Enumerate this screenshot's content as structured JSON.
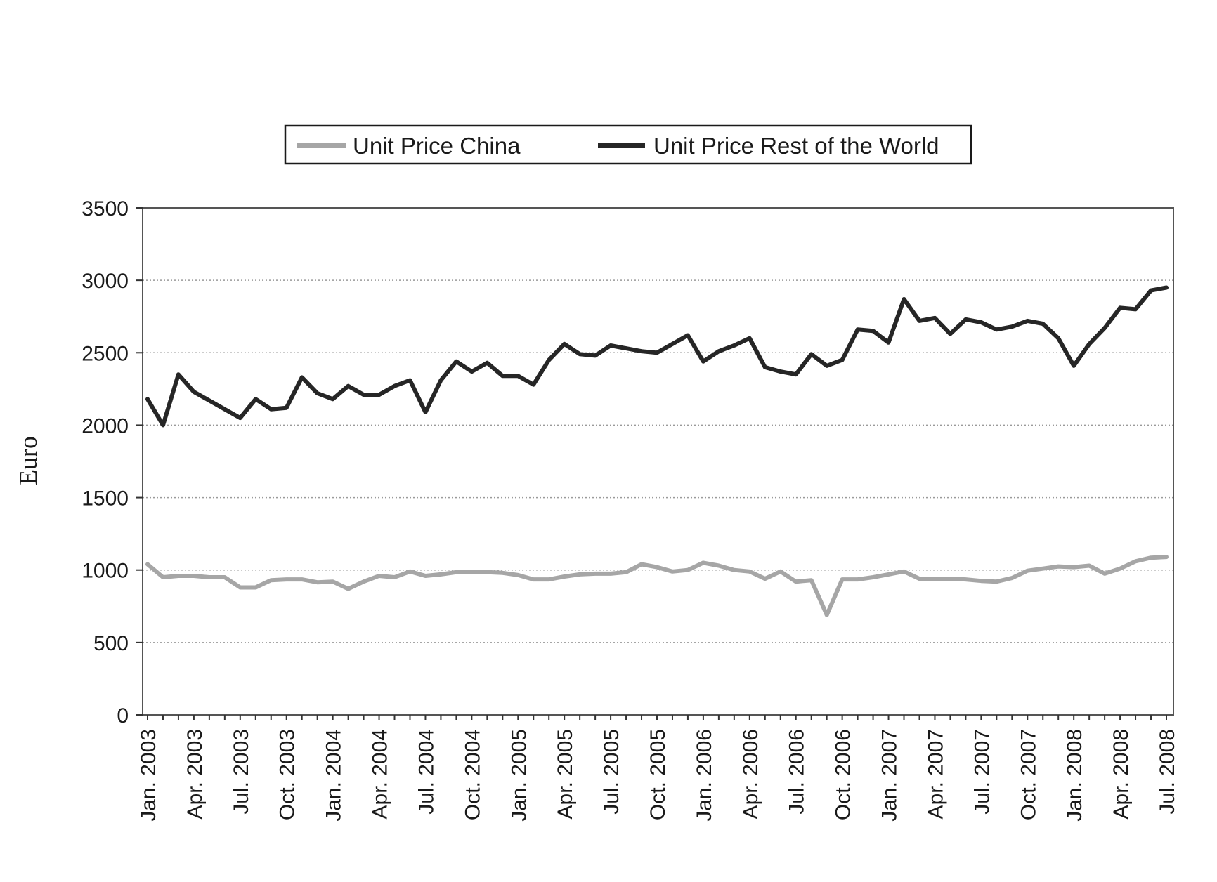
{
  "chart_data": {
    "type": "line",
    "title": "",
    "xlabel": "",
    "ylabel": "Euro",
    "ylim": [
      0,
      3500
    ],
    "yticks": [
      0,
      500,
      1000,
      1500,
      2000,
      2500,
      3000,
      3500
    ],
    "grid": "horizontal dotted",
    "legend": "top-center",
    "x": [
      "Jan. 2003",
      "Feb. 2003",
      "Mar. 2003",
      "Apr. 2003",
      "May 2003",
      "Jun. 2003",
      "Jul. 2003",
      "Aug. 2003",
      "Sep. 2003",
      "Oct. 2003",
      "Nov. 2003",
      "Dec. 2003",
      "Jan. 2004",
      "Feb. 2004",
      "Mar. 2004",
      "Apr. 2004",
      "May 2004",
      "Jun. 2004",
      "Jul. 2004",
      "Aug. 2004",
      "Sep. 2004",
      "Oct. 2004",
      "Nov. 2004",
      "Dec. 2004",
      "Jan. 2005",
      "Feb. 2005",
      "Mar. 2005",
      "Apr. 2005",
      "May 2005",
      "Jun. 2005",
      "Jul. 2005",
      "Aug. 2005",
      "Sep. 2005",
      "Oct. 2005",
      "Nov. 2005",
      "Dec. 2005",
      "Jan. 2006",
      "Feb. 2006",
      "Mar. 2006",
      "Apr. 2006",
      "May 2006",
      "Jun. 2006",
      "Jul. 2006",
      "Aug. 2006",
      "Sep. 2006",
      "Oct. 2006",
      "Nov. 2006",
      "Dec. 2006",
      "Jan. 2007",
      "Feb. 2007",
      "Mar. 2007",
      "Apr. 2007",
      "May 2007",
      "Jun. 2007",
      "Jul. 2007",
      "Aug. 2007",
      "Sep. 2007",
      "Oct. 2007",
      "Nov. 2007",
      "Dec. 2007",
      "Jan. 2008",
      "Feb. 2008",
      "Mar. 2008",
      "Apr. 2008",
      "May 2008",
      "Jun. 2008",
      "Jul. 2008"
    ],
    "xticks": [
      "Jan. 2003",
      "Apr. 2003",
      "Jul. 2003",
      "Oct. 2003",
      "Jan. 2004",
      "Apr. 2004",
      "Jul. 2004",
      "Oct. 2004",
      "Jan. 2005",
      "Apr. 2005",
      "Jul. 2005",
      "Oct. 2005",
      "Jan. 2006",
      "Apr. 2006",
      "Jul. 2006",
      "Oct. 2006",
      "Jan. 2007",
      "Apr. 2007",
      "Jul. 2007",
      "Oct. 2007",
      "Jan. 2008",
      "Apr. 2008",
      "Jul. 2008"
    ],
    "series": [
      {
        "name": "Unit Price China",
        "color": "#a6a6a6",
        "values": [
          1040,
          950,
          960,
          960,
          950,
          950,
          880,
          880,
          930,
          935,
          935,
          915,
          920,
          870,
          920,
          960,
          950,
          990,
          960,
          970,
          985,
          985,
          985,
          980,
          965,
          935,
          935,
          955,
          970,
          975,
          975,
          985,
          1040,
          1020,
          990,
          1000,
          1050,
          1030,
          1000,
          990,
          940,
          990,
          920,
          930,
          690,
          935,
          935,
          950,
          970,
          990,
          940,
          940,
          940,
          935,
          925,
          920,
          945,
          995,
          1010,
          1025,
          1020,
          1030,
          975,
          1010,
          1060,
          1085,
          1090
        ]
      },
      {
        "name": "Unit Price Rest of the World",
        "color": "#262626",
        "values": [
          2180,
          2000,
          2350,
          2230,
          2170,
          2110,
          2050,
          2180,
          2110,
          2120,
          2330,
          2220,
          2180,
          2270,
          2210,
          2210,
          2270,
          2310,
          2090,
          2310,
          2440,
          2370,
          2430,
          2340,
          2340,
          2280,
          2450,
          2560,
          2490,
          2480,
          2550,
          2530,
          2510,
          2500,
          2560,
          2620,
          2440,
          2510,
          2550,
          2600,
          2400,
          2370,
          2350,
          2490,
          2410,
          2450,
          2660,
          2650,
          2570,
          2870,
          2720,
          2740,
          2630,
          2730,
          2710,
          2660,
          2680,
          2720,
          2700,
          2600,
          2410,
          2560,
          2670,
          2810,
          2800,
          2930,
          2950
        ]
      }
    ]
  }
}
